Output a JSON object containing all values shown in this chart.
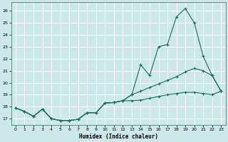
{
  "xlabel": "Humidex (Indice chaleur)",
  "xlim": [
    -0.5,
    23.5
  ],
  "ylim": [
    16.5,
    26.7
  ],
  "yticks": [
    17,
    18,
    19,
    20,
    21,
    22,
    23,
    24,
    25,
    26
  ],
  "xticks": [
    0,
    1,
    2,
    3,
    4,
    5,
    6,
    7,
    8,
    9,
    10,
    11,
    12,
    13,
    14,
    15,
    16,
    17,
    18,
    19,
    20,
    21,
    22,
    23
  ],
  "bg_color": "#cce8e8",
  "line_color": "#1a6b5a",
  "grid_color": "#ffffff",
  "s1_x": [
    0,
    1,
    2,
    3,
    4,
    5,
    6,
    7,
    8,
    9,
    10,
    11,
    12,
    13,
    14,
    15,
    16,
    17,
    18,
    19,
    20,
    21,
    22,
    23
  ],
  "s1_y": [
    17.9,
    17.6,
    17.2,
    17.8,
    17.0,
    16.85,
    16.85,
    16.95,
    17.5,
    17.5,
    18.3,
    18.35,
    18.5,
    18.5,
    18.55,
    18.7,
    18.85,
    19.0,
    19.1,
    19.2,
    19.2,
    19.1,
    19.0,
    19.3
  ],
  "s2_x": [
    0,
    1,
    2,
    3,
    4,
    5,
    6,
    7,
    8,
    9,
    10,
    11,
    12,
    13,
    14,
    15,
    16,
    17,
    18,
    19,
    20,
    21,
    22,
    23
  ],
  "s2_y": [
    17.9,
    17.6,
    17.2,
    17.8,
    17.0,
    16.85,
    16.85,
    16.95,
    17.5,
    17.5,
    18.3,
    18.35,
    18.5,
    19.0,
    21.5,
    20.6,
    23.0,
    23.2,
    25.5,
    26.2,
    25.0,
    22.2,
    20.6,
    19.3
  ],
  "s3_x": [
    0,
    1,
    2,
    3,
    4,
    5,
    6,
    7,
    8,
    9,
    10,
    11,
    12,
    13,
    14,
    15,
    16,
    17,
    18,
    19,
    20,
    21,
    22,
    23
  ],
  "s3_y": [
    17.9,
    17.6,
    17.2,
    17.8,
    17.0,
    16.85,
    16.85,
    16.95,
    17.5,
    17.5,
    18.3,
    18.35,
    18.5,
    19.0,
    19.3,
    19.6,
    19.9,
    20.2,
    20.5,
    20.9,
    21.2,
    21.0,
    20.6,
    19.3
  ]
}
